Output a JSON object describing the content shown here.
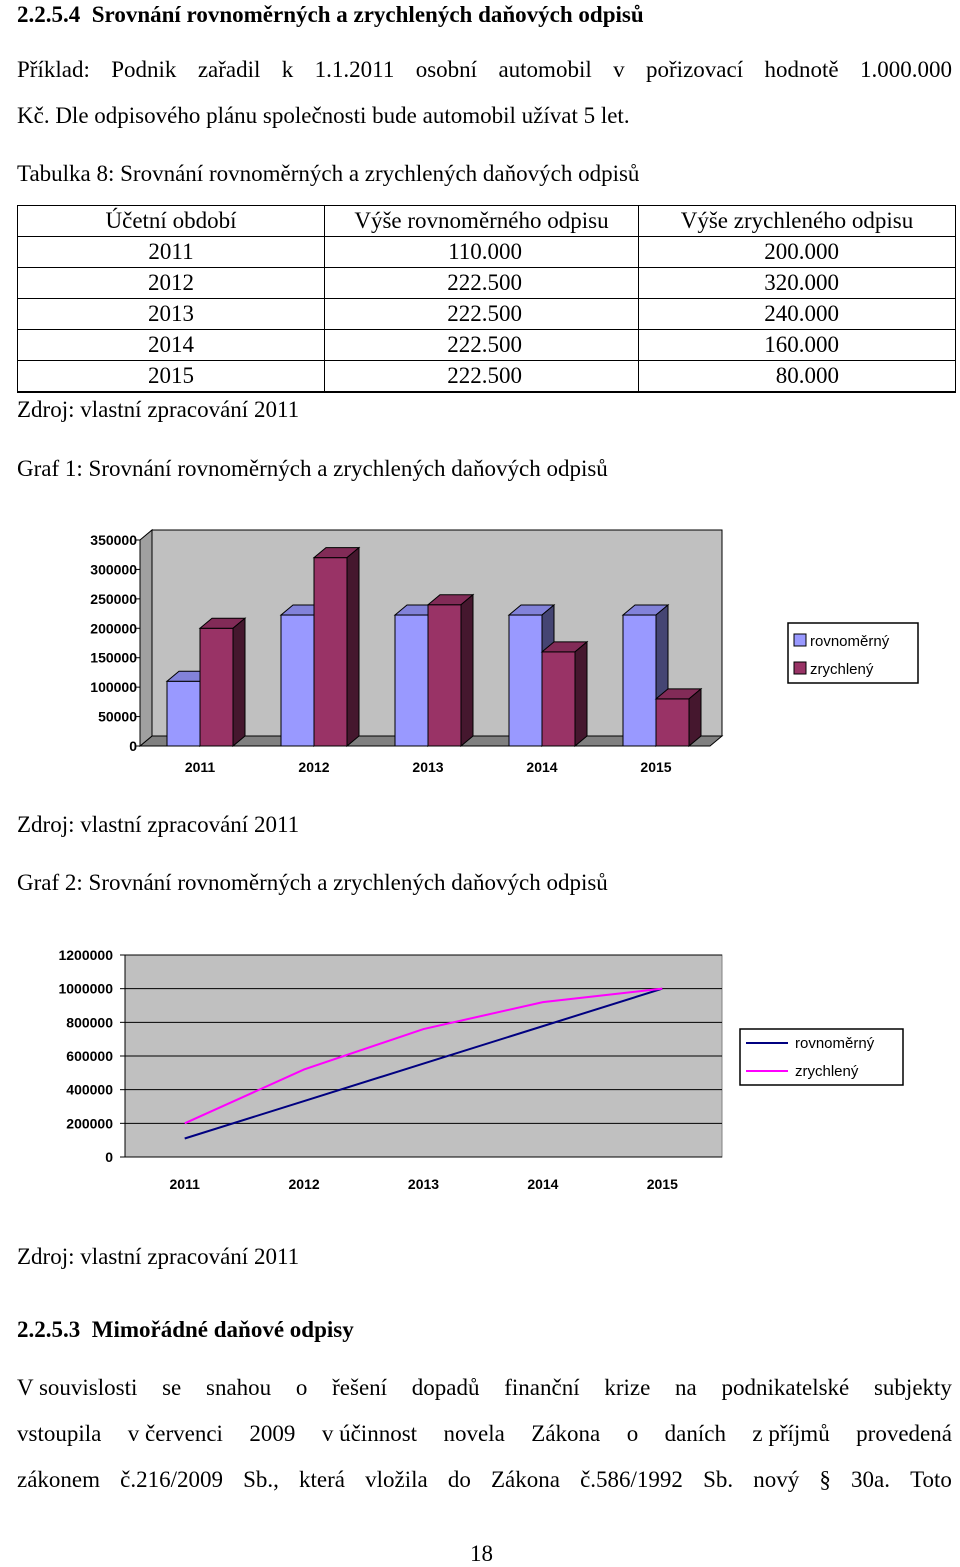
{
  "section": {
    "number": "2.2.5.4",
    "title": "Srovnání rovnoměrných a zrychlených daňových odpisů"
  },
  "intro": {
    "line1": "Příklad: Podnik zařadil k 1.1.2011 osobní automobil v pořizovací hodnotě 1.000.000",
    "line2": "Kč. Dle odpisového plánu společnosti bude automobil užívat 5 let."
  },
  "table": {
    "caption": "Tabulka 8: Srovnání rovnoměrných a zrychlených daňových odpisů",
    "headers": [
      "Účetní období",
      "Výše rovnoměrného odpisu",
      "Výše zrychleného odpisu"
    ],
    "rows": [
      [
        "2011",
        "110.000",
        "200.000"
      ],
      [
        "2012",
        "222.500",
        "320.000"
      ],
      [
        "2013",
        "222.500",
        "240.000"
      ],
      [
        "2014",
        "222.500",
        "160.000"
      ],
      [
        "2015",
        "222.500",
        "80.000"
      ]
    ],
    "source": "Zdroj: vlastní zpracování 2011"
  },
  "graph1": {
    "caption": "Graf  1: Srovnání rovnoměrných a zrychlených daňových odpisů",
    "source": "Zdroj: vlastní zpracování 2011"
  },
  "graph2": {
    "caption": "Graf  2: Srovnání rovnoměrných a zrychlených daňových odpisů",
    "source": "Zdroj: vlastní zpracování 2011"
  },
  "chart_data": [
    {
      "type": "bar",
      "categories": [
        "2011",
        "2012",
        "2013",
        "2014",
        "2015"
      ],
      "series": [
        {
          "name": "rovnoměrný",
          "values": [
            110000,
            222500,
            222500,
            222500,
            222500
          ],
          "color": "#9999ff"
        },
        {
          "name": "zrychlený",
          "values": [
            200000,
            320000,
            240000,
            160000,
            80000
          ],
          "color": "#993366"
        }
      ],
      "yticks": [
        "0",
        "50000",
        "100000",
        "150000",
        "200000",
        "250000",
        "300000",
        "350000"
      ],
      "ylim": [
        0,
        350000
      ],
      "style": "3d",
      "legend": "right",
      "wall_color": "#c0c0c0"
    },
    {
      "type": "line",
      "categories": [
        "2011",
        "2012",
        "2013",
        "2014",
        "2015"
      ],
      "series": [
        {
          "name": "rovnoměrný",
          "values": [
            110000,
            332500,
            555000,
            777500,
            1000000
          ],
          "color": "#000080"
        },
        {
          "name": "zrychlený",
          "values": [
            200000,
            520000,
            760000,
            920000,
            1000000
          ],
          "color": "#ff00ff"
        }
      ],
      "yticks": [
        "0",
        "200000",
        "400000",
        "600000",
        "800000",
        "1000000",
        "1200000"
      ],
      "ylim": [
        0,
        1200000
      ],
      "grid": true,
      "legend": "right",
      "plot_color": "#c0c0c0"
    }
  ],
  "section2": {
    "number": "2.2.5.3",
    "title": "Mimořádné daňové odpisy"
  },
  "paragraph": {
    "line1": [
      "V souvislosti",
      "se",
      "snahou",
      "o",
      "řešení",
      "dopadů",
      "finanční",
      "krize",
      "na",
      "podnikatelské",
      "subjekty"
    ],
    "line2": [
      "vstoupila",
      "v červenci",
      "2009",
      "v účinnost",
      "novela",
      "Zákona",
      "o",
      "daních",
      "z příjmů",
      "provedená"
    ],
    "line3": [
      "zákonem",
      "č.216/2009",
      "Sb.,",
      "která",
      "vložila",
      "do",
      "Zákona",
      "č.586/1992",
      "Sb.",
      "nový",
      "§",
      "30a.",
      "Toto"
    ]
  },
  "page_number": "18"
}
